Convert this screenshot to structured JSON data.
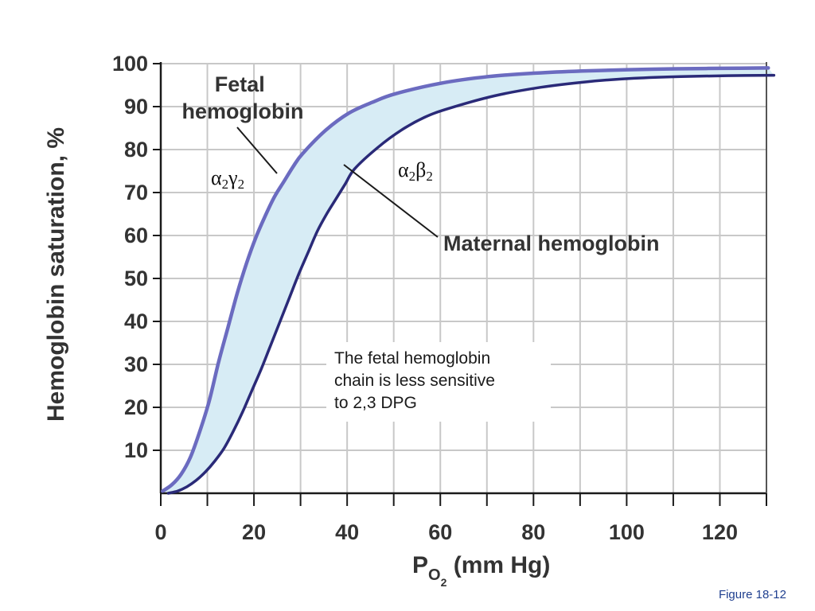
{
  "figure_label": "Figure 18-12",
  "chart_data": {
    "type": "line",
    "xlabel": {
      "base": "P",
      "sub": "O",
      "subsub": "2",
      "rest": " (mm Hg)"
    },
    "ylabel": "Hemoglobin saturation, %",
    "xlim": [
      0,
      130
    ],
    "ylim": [
      0,
      100
    ],
    "x_ticks": [
      0,
      20,
      40,
      60,
      80,
      100,
      120
    ],
    "x_tick_labels": [
      "0",
      "20",
      "40",
      "60",
      "80",
      "100",
      "120"
    ],
    "y_ticks": [
      10,
      20,
      30,
      40,
      50,
      60,
      70,
      80,
      90,
      100
    ],
    "y_tick_labels": [
      "10",
      "20",
      "30",
      "40",
      "50",
      "60",
      "70",
      "80",
      "90",
      "100"
    ],
    "x_gridlines": [
      10,
      20,
      30,
      40,
      50,
      60,
      70,
      80,
      90,
      100,
      110,
      120,
      130
    ],
    "y_gridlines": [
      10,
      20,
      30,
      40,
      50,
      60,
      70,
      80,
      90,
      100
    ],
    "grid": true,
    "shaded_region_between_series": true,
    "series": [
      {
        "name_lines": [
          "Fetal",
          "hemoglobin"
        ],
        "subunits": {
          "a": "α",
          "a_sub": "2",
          "b": "γ",
          "b_sub": "2"
        },
        "color": "#6b6bc0",
        "x": [
          0,
          2,
          4,
          6,
          8,
          10,
          12,
          14,
          16,
          18,
          20,
          22,
          24,
          26,
          28,
          30,
          35,
          40,
          45,
          50,
          60,
          70,
          80,
          90,
          100,
          110,
          120,
          130
        ],
        "y": [
          0,
          1.5,
          4,
          8,
          14,
          21,
          30,
          38,
          46,
          53,
          59,
          64,
          68.5,
          72,
          75.5,
          78.5,
          84,
          88,
          90.5,
          92.5,
          95,
          96.5,
          97.3,
          97.8,
          98.1,
          98.3,
          98.4,
          98.5
        ]
      },
      {
        "name": "Maternal hemoglobin",
        "subunits": {
          "a": "α",
          "a_sub": "2",
          "b": "β",
          "b_sub": "2"
        },
        "color": "#2a2a78",
        "x": [
          0,
          2,
          4,
          6,
          8,
          10,
          12,
          14,
          16,
          18,
          20,
          22,
          24,
          26,
          28,
          30,
          32,
          34,
          36,
          38,
          40,
          45,
          50,
          55,
          60,
          70,
          80,
          90,
          100,
          110,
          120,
          130
        ],
        "y": [
          0,
          0.5,
          1.5,
          3,
          5,
          7.5,
          10.5,
          14.5,
          19,
          24,
          29,
          34.5,
          40,
          45.5,
          51,
          56,
          61,
          65,
          68.5,
          72,
          75.5,
          80.5,
          84.5,
          87.5,
          89.5,
          92.5,
          94.5,
          95.8,
          96.6,
          97,
          97.2,
          97.3
        ]
      }
    ],
    "annotation": [
      "The fetal hemoglobin",
      "chain is less sensitive",
      "to 2,3 DPG"
    ]
  }
}
